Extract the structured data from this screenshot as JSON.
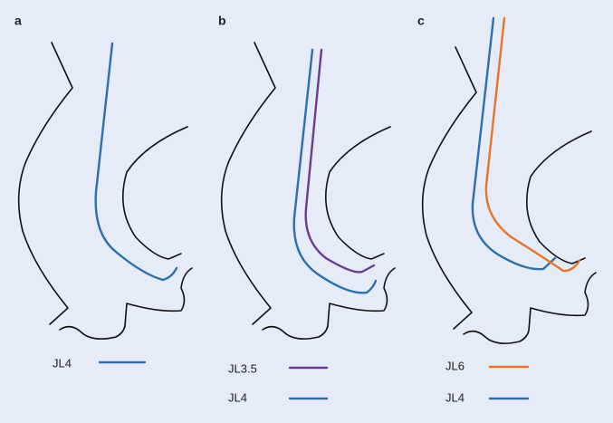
{
  "panels": [
    {
      "label": "a",
      "legend": [
        {
          "name": "JL4",
          "color": "#2b6fab"
        }
      ]
    },
    {
      "label": "b",
      "legend": [
        {
          "name": "JL3.5",
          "color": "#6a3b8e"
        },
        {
          "name": "JL4",
          "color": "#2b6fab"
        }
      ]
    },
    {
      "label": "c",
      "legend": [
        {
          "name": "JL6",
          "color": "#e3762c"
        },
        {
          "name": "JL4",
          "color": "#2b6fab"
        }
      ]
    }
  ]
}
